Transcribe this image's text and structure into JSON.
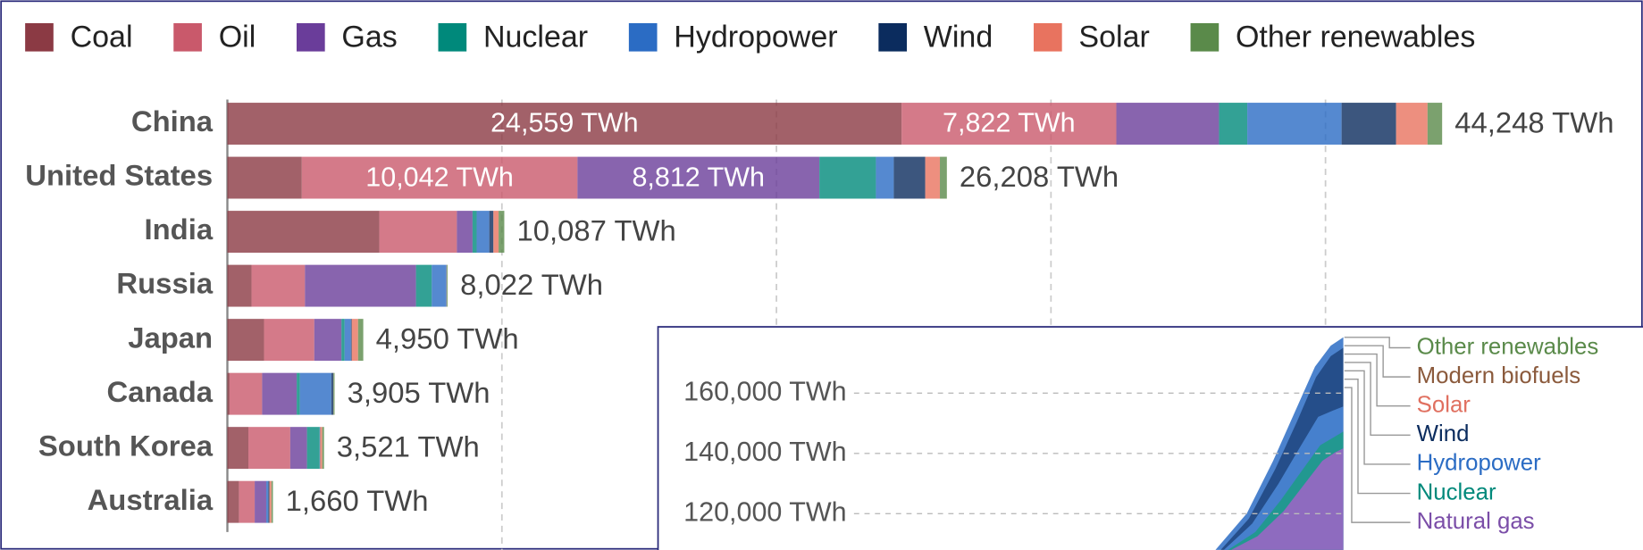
{
  "chart_data": [
    {
      "type": "bar",
      "orientation": "horizontal",
      "stacked": true,
      "categories": [
        "China",
        "United States",
        "India",
        "Russia",
        "Japan",
        "Canada",
        "South Korea",
        "Australia"
      ],
      "series": [
        {
          "name": "Coal",
          "color": "#8b3a44",
          "values": [
            24559,
            2710,
            5535,
            880,
            1335,
            80,
            765,
            420
          ],
          "value_labels": [
            "24,559 TWh",
            null,
            null,
            null,
            null,
            null,
            null,
            null
          ]
        },
        {
          "name": "Oil",
          "color": "#c9596b",
          "values": [
            7822,
            10042,
            2825,
            1945,
            1830,
            1185,
            1525,
            575
          ],
          "value_labels": [
            "7,822 TWh",
            "10,042 TWh",
            null,
            null,
            null,
            null,
            null,
            null
          ]
        },
        {
          "name": "Gas",
          "color": "#6a3d9a",
          "values": [
            3740,
            8812,
            570,
            4045,
            990,
            1260,
            610,
            420
          ],
          "value_labels": [
            null,
            "8,812 TWh",
            null,
            null,
            null,
            null,
            null,
            null
          ]
        },
        {
          "name": "Nuclear",
          "color": "#00897b",
          "values": [
            1030,
            2060,
            150,
            575,
            115,
            115,
            460,
            0
          ]
        },
        {
          "name": "Hydropower",
          "color": "#2b6cc4",
          "values": [
            3435,
            650,
            460,
            535,
            230,
            1145,
            10,
            75
          ]
        },
        {
          "name": "Wind",
          "color": "#0b2c5e",
          "values": [
            1985,
            1145,
            150,
            2,
            30,
            75,
            10,
            40
          ]
        },
        {
          "name": "Solar",
          "color": "#e8735f",
          "values": [
            1145,
            535,
            190,
            10,
            230,
            5,
            75,
            75
          ]
        },
        {
          "name": "Other renewables",
          "color": "#5a8a4a",
          "values": [
            532,
            254,
            207,
            30,
            190,
            40,
            66,
            55
          ]
        }
      ],
      "totals": [
        44248,
        26208,
        10087,
        8022,
        4950,
        3905,
        3521,
        1660
      ],
      "total_labels": [
        "44,248 TWh",
        "26,208 TWh",
        "10,087 TWh",
        "8,022 TWh",
        "4,950 TWh",
        "3,905 TWh",
        "3,521 TWh",
        "1,660 TWh"
      ],
      "xlim": [
        0,
        50000
      ],
      "xticks": [
        0,
        10000,
        20000,
        30000,
        40000
      ],
      "grid": true,
      "legend": "top"
    },
    {
      "type": "area",
      "stacked": true,
      "ylim": [
        108000,
        182000
      ],
      "yticks": [
        {
          "value": 120000,
          "label": "120,000 TWh"
        },
        {
          "value": 140000,
          "label": "140,000 TWh"
        },
        {
          "value": 160000,
          "label": "160,000 TWh"
        }
      ],
      "grid": true,
      "series": [
        {
          "name": "Other renewables",
          "color": "#5a8a4a"
        },
        {
          "name": "Modern biofuels",
          "color": "#8b5a3c"
        },
        {
          "name": "Solar",
          "color": "#e07060"
        },
        {
          "name": "Wind",
          "color": "#0b2c5e"
        },
        {
          "name": "Hydropower",
          "color": "#2b6cc4"
        },
        {
          "name": "Nuclear",
          "color": "#00897b"
        },
        {
          "name": "Natural gas",
          "color": "#7b4ea8"
        }
      ]
    }
  ]
}
